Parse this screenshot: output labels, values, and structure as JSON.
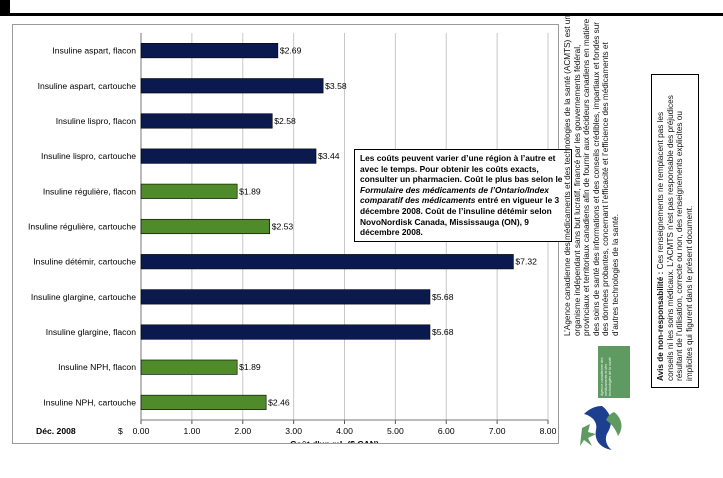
{
  "chart_data": {
    "type": "bar",
    "orientation": "horizontal",
    "categories": [
      "Insuline aspart, flacon",
      "Insuline aspart, cartouche",
      "Insuline lispro, flacon",
      "Insuline lispro, cartouche",
      "Insuline régulière, flacon",
      "Insuline régulière, cartouche",
      "Insuline détémir, cartouche",
      "Insuline glargine, cartouche",
      "Insuline glargine, flacon",
      "Insuline NPH, flacon",
      "Insuline NPH, cartouche"
    ],
    "values": [
      2.69,
      3.58,
      2.58,
      3.44,
      1.89,
      2.53,
      7.32,
      5.68,
      5.68,
      1.89,
      2.46
    ],
    "data_labels": [
      "$2.69",
      "$3.58",
      "$2.58",
      "$3.44",
      "$1.89",
      "$2.53",
      "$7.32",
      "$5.68",
      "$5.68",
      "$1.89",
      "$2.46"
    ],
    "bar_colors": [
      "#0b1a4e",
      "#0b1a4e",
      "#0b1a4e",
      "#0b1a4e",
      "#4f8a2b",
      "#4f8a2b",
      "#0b1a4e",
      "#0b1a4e",
      "#0b1a4e",
      "#4f8a2b",
      "#4f8a2b"
    ],
    "xlabel": "Coût d'un mL ($ CAN)",
    "xlim": [
      0,
      8
    ],
    "xticks": [
      0,
      1,
      2,
      3,
      4,
      5,
      6,
      7,
      8
    ],
    "xtick_labels": [
      "0.00",
      "1.00",
      "2.00",
      "3.00",
      "4.00",
      "5.00",
      "6.00",
      "7.00",
      "8.00"
    ],
    "date_label": "Déc. 2008",
    "currency_label": "$",
    "grid": true
  },
  "note": {
    "line_before": "Les coûts peuvent varier d’une région à l’autre et avec le temps. Pour obtenir les coûts exacts, consulter un pharmacien. Coût le plus bas selon le ",
    "italic_source": "Formulaire des médicaments de l’Ontario/Index comparatif des médicaments",
    "line_after": " entré en vigueur le 3 décembre 2008. Coût de l’insuline détémir selon NovoNordisk Canada, Mississauga (ON), 9 décembre 2008."
  },
  "side": {
    "agency_text": "L’Agence canadienne des médicaments et des technologies de la santé (ACMTS) est un organisme indépendant sans but lucratif, financé par les gouvernements fédéral, provinciaux et territoriaux canadiens afin de fournir aux décideurs canadiens en matière des soins de santé des informations et des conseils crédibles, impartiaux et fondés sur des données probantes, concernant l’efficacité et l’efficience des médicaments et d’autres technologies de la santé.",
    "disclaimer_title": "Avis de non-responsabilité :",
    "disclaimer_text": " Ces renseignements ne remplacent pas les conseils ni les soins médicaux. L’ACMTS n’est pas responsable des préjudices résultant de l’utilisation, correcte ou non, des renseignements explicites ou implicites qui figurent dans le présent document.",
    "logo_text": "Agence canadienne des médicaments et des technologies de la santé"
  },
  "colors": {
    "navy_bar": "#0b1a4e",
    "green_bar": "#4f8a2b",
    "logo_green": "#5f9a62",
    "logo_blue": "#1c3f8f"
  }
}
